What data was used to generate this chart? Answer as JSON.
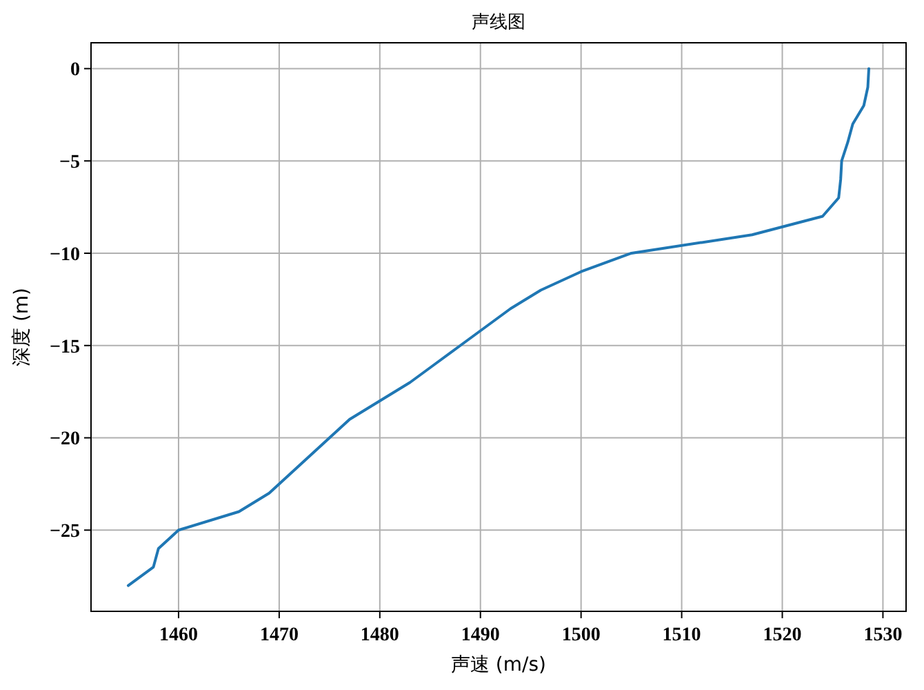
{
  "chart_data": {
    "type": "line",
    "title": "声线图",
    "xlabel": "声速 (m/s)",
    "ylabel": "深度 (m)",
    "x": [
      1528.6,
      1528.5,
      1528.1,
      1527.0,
      1526.5,
      1525.9,
      1525.8,
      1525.6,
      1524.0,
      1517,
      1505,
      1500,
      1496,
      1493,
      1490.5,
      1488,
      1485.5,
      1483,
      1480,
      1477,
      1475,
      1473,
      1471,
      1469,
      1466,
      1460,
      1458,
      1457.5,
      1455
    ],
    "series": [
      {
        "color": "#1f77b4",
        "values": [
          0,
          -1,
          -2,
          -3,
          -4,
          -5,
          -6,
          -7,
          -8,
          -9,
          -10,
          -11,
          -12,
          -13,
          -14,
          -15,
          -16,
          -17,
          -18,
          -19,
          -20,
          -21,
          -22,
          -23,
          -24,
          -25,
          -26,
          -27,
          -28
        ]
      }
    ],
    "xlim": [
      1451.3,
      1532.3
    ],
    "ylim": [
      -29.4,
      1.4
    ],
    "xticks": [
      1460,
      1470,
      1480,
      1490,
      1500,
      1510,
      1520,
      1530
    ],
    "yticks": [
      {
        "value": 0,
        "label": "0"
      },
      {
        "value": -5,
        "label": "−5"
      },
      {
        "value": -10,
        "label": "−10"
      },
      {
        "value": -15,
        "label": "−15"
      },
      {
        "value": -20,
        "label": "−20"
      },
      {
        "value": -25,
        "label": "−25"
      }
    ],
    "grid": true,
    "line_style": "solid",
    "marker": "none"
  }
}
